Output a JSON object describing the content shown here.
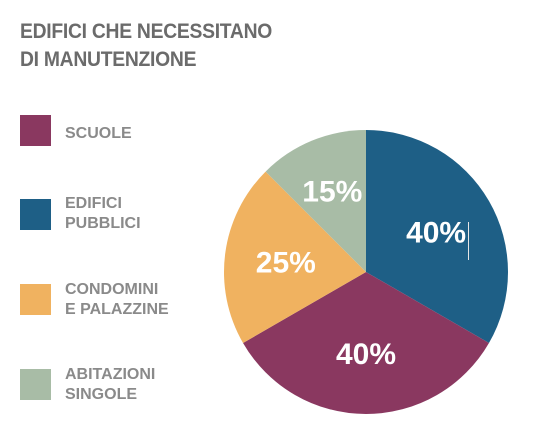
{
  "title_lines": [
    "EDIFICI CHE NECESSITANO",
    "DI MANUTENZIONE"
  ],
  "chart_data": {
    "type": "pie",
    "title": "EDIFICI CHE NECESSITANO DI MANUTENZIONE",
    "categories": [
      "SCUOLE",
      "EDIFICI PUBBLICI",
      "CONDOMINI E PALAZZINE",
      "ABITAZIONI SINGOLE"
    ],
    "legend_lines": [
      [
        "SCUOLE"
      ],
      [
        "EDIFICI",
        "PUBBLICI"
      ],
      [
        "CONDOMINI",
        "E PALAZZINE"
      ],
      [
        "ABITAZIONI",
        "SINGOLE"
      ]
    ],
    "values": [
      40,
      40,
      25,
      15
    ],
    "value_labels": [
      "40%",
      "40%",
      "25%",
      "15%"
    ],
    "colors": [
      "#8a3860",
      "#1e5f86",
      "#f0b260",
      "#a8bca6"
    ],
    "legend_position": "left"
  }
}
